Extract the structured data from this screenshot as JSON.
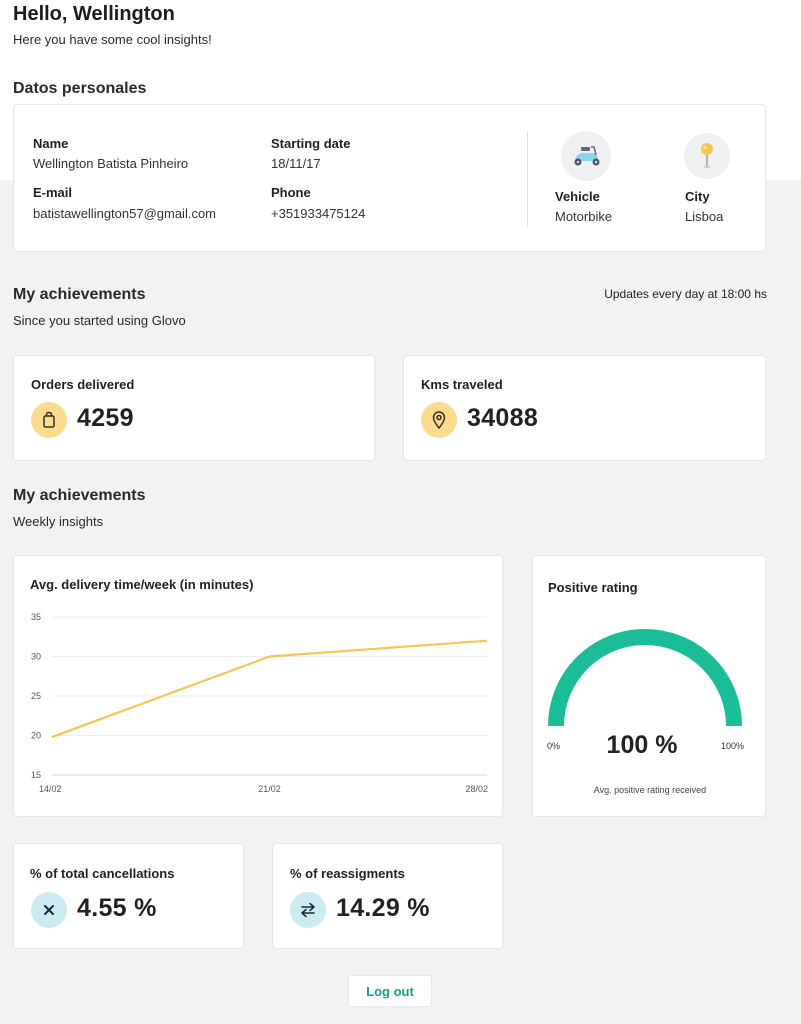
{
  "header": {
    "greeting": "Hello, Wellington",
    "subtitle": "Here you have some cool insights!"
  },
  "personal": {
    "section_title": "Datos personales",
    "name_label": "Name",
    "name_value": "Wellington Batista Pinheiro",
    "start_label": "Starting date",
    "start_value": "18/11/17",
    "email_label": "E-mail",
    "email_value": "batistawellington57@gmail.com",
    "phone_label": "Phone",
    "phone_value": "+351933475124",
    "vehicle_label": "Vehicle",
    "vehicle_value": "Motorbike",
    "vehicle_icon": "scooter-icon",
    "city_label": "City",
    "city_value": "Lisboa",
    "city_icon": "map-pin-icon"
  },
  "achievements": {
    "title": "My achievements",
    "subtitle": "Since you started using Glovo",
    "update_note": "Updates every day at 18:00 hs",
    "orders_label": "Orders delivered",
    "orders_value": "4259",
    "orders_icon": "shopping-bag-icon",
    "kms_label": "Kms traveled",
    "kms_value": "34088",
    "kms_icon": "location-icon"
  },
  "weekly": {
    "title": "My achievements",
    "subtitle": "Weekly insights"
  },
  "chart_data": {
    "type": "line",
    "title": "Avg. delivery time/week (in minutes)",
    "categories": [
      "14/02",
      "21/02",
      "28/02"
    ],
    "series": [
      {
        "values": [
          19.8,
          30.0,
          32.0
        ],
        "color": "#f5c651"
      }
    ],
    "ylim": [
      15,
      35
    ],
    "yticks": [
      "35",
      "30",
      "25",
      "20",
      "15"
    ],
    "grid": true
  },
  "rating": {
    "title": "Positive rating",
    "value_text": "100 %",
    "value": 100,
    "min_label": "0%",
    "max_label": "100%",
    "caption": "Avg. positive rating received",
    "color": "#1bbd98"
  },
  "cancellations": {
    "label": "% of total cancellations",
    "value": "4.55 %",
    "icon": "close-icon"
  },
  "reassignments": {
    "label": "% of reassigments",
    "value": "14.29 %",
    "icon": "swap-arrows-icon"
  },
  "logout_label": "Log out"
}
